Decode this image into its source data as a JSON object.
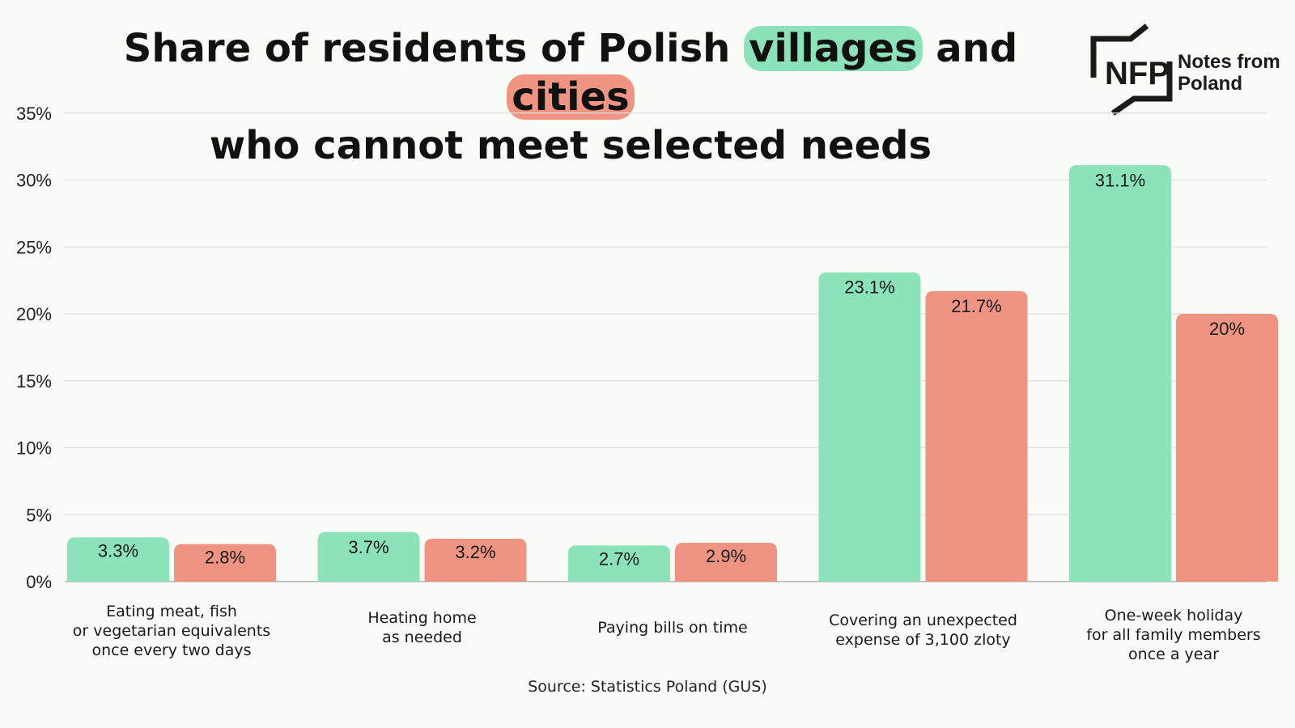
{
  "title": {
    "line1_prefix": "Share of residents of Polish ",
    "highlight_villages": "villages",
    "line1_mid": " and ",
    "highlight_cities": "cities",
    "line2": "who cannot meet selected needs"
  },
  "logo": {
    "mark": "NFP",
    "name_line1": "Notes from",
    "name_line2": "Poland"
  },
  "source": "Source: Statistics Poland (GUS)",
  "colors": {
    "villages": "#8ce3b9",
    "cities": "#ef9482",
    "grid": "#dcdfdc",
    "background": "#f8fbf6"
  },
  "chart_data": {
    "type": "bar",
    "title": "Share of residents of Polish villages and cities who cannot meet selected needs",
    "xlabel": "",
    "ylabel": "",
    "ylim": [
      0,
      35
    ],
    "yticks": [
      0,
      5,
      10,
      15,
      20,
      25,
      30,
      35
    ],
    "ytick_labels": [
      "0%",
      "5%",
      "10%",
      "15%",
      "20%",
      "25%",
      "30%",
      "35%"
    ],
    "grid": true,
    "categories": [
      "Eating meat, fish\nor vegetarian equivalents\nonce every two days",
      "Heating home\nas needed",
      "Paying bills on time",
      "Covering an unexpected\nexpense of  3,100 zloty",
      "One-week holiday\nfor all family members\nonce a year"
    ],
    "series": [
      {
        "name": "villages",
        "values": [
          3.3,
          3.7,
          2.7,
          23.1,
          31.1
        ],
        "labels": [
          "3.3%",
          "3.7%",
          "2.7%",
          "23.1%",
          "31.1%"
        ]
      },
      {
        "name": "cities",
        "values": [
          2.8,
          3.2,
          2.9,
          21.7,
          20
        ],
        "labels": [
          "2.8%",
          "3.2%",
          "2.9%",
          "21.7%",
          "20%"
        ]
      }
    ]
  }
}
